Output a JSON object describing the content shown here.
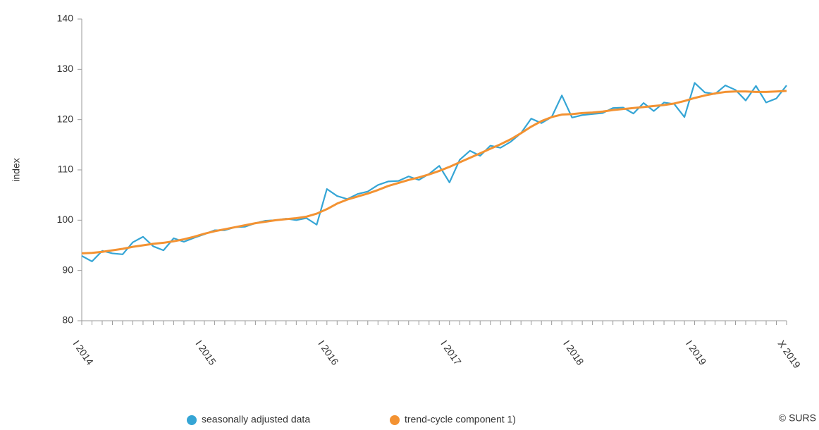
{
  "chart_data": {
    "type": "line",
    "ylabel": "index",
    "source": "© SURS",
    "categories": [
      "I 2014",
      null,
      null,
      null,
      null,
      null,
      null,
      null,
      null,
      null,
      null,
      null,
      "I 2015",
      null,
      null,
      null,
      null,
      null,
      null,
      null,
      null,
      null,
      null,
      null,
      "I 2016",
      null,
      null,
      null,
      null,
      null,
      null,
      null,
      null,
      null,
      null,
      null,
      "I 2017",
      null,
      null,
      null,
      null,
      null,
      null,
      null,
      null,
      null,
      null,
      null,
      "I 2018",
      null,
      null,
      null,
      null,
      null,
      null,
      null,
      null,
      null,
      null,
      null,
      "I 2019",
      null,
      null,
      null,
      null,
      null,
      null,
      null,
      null,
      "X 2019"
    ],
    "series": [
      {
        "name": "seasonally adjusted data",
        "color": "#35a5d5",
        "values": [
          92.9,
          91.8,
          93.9,
          93.4,
          93.2,
          95.6,
          96.7,
          94.8,
          94.0,
          96.4,
          95.7,
          96.5,
          97.2,
          98.0,
          98.0,
          98.6,
          98.7,
          99.4,
          99.9,
          100.0,
          100.3,
          100.0,
          100.4,
          99.1,
          106.2,
          104.8,
          104.2,
          105.2,
          105.7,
          107.0,
          107.7,
          107.8,
          108.7,
          108.0,
          109.2,
          110.8,
          107.5,
          112.0,
          113.8,
          112.8,
          114.8,
          114.4,
          115.6,
          117.3,
          120.2,
          119.3,
          120.5,
          124.8,
          120.4,
          120.9,
          121.1,
          121.3,
          122.3,
          122.4,
          121.2,
          123.3,
          121.7,
          123.4,
          123.1,
          120.5,
          127.3,
          125.4,
          125.1,
          126.8,
          125.9,
          123.8,
          126.7,
          123.4,
          124.2,
          126.8
        ]
      },
      {
        "name": "trend-cycle component 1)",
        "color": "#f39232",
        "values": [
          93.4,
          93.5,
          93.7,
          94.0,
          94.3,
          94.7,
          95.0,
          95.3,
          95.5,
          95.8,
          96.2,
          96.7,
          97.3,
          97.8,
          98.2,
          98.6,
          99.0,
          99.4,
          99.7,
          100.0,
          100.2,
          100.4,
          100.7,
          101.3,
          102.2,
          103.3,
          104.1,
          104.7,
          105.3,
          106.0,
          106.8,
          107.4,
          108.0,
          108.5,
          109.1,
          109.8,
          110.6,
          111.5,
          112.4,
          113.3,
          114.2,
          115.1,
          116.1,
          117.3,
          118.6,
          119.7,
          120.5,
          121.0,
          121.1,
          121.3,
          121.4,
          121.6,
          121.9,
          122.1,
          122.3,
          122.5,
          122.7,
          122.9,
          123.2,
          123.7,
          124.3,
          124.8,
          125.2,
          125.5,
          125.6,
          125.6,
          125.5,
          125.5,
          125.6,
          125.7
        ]
      }
    ],
    "ylim": [
      80,
      140
    ],
    "yticks": [
      80,
      90,
      100,
      110,
      120,
      130,
      140
    ],
    "grid": false,
    "legend": "bottom"
  }
}
